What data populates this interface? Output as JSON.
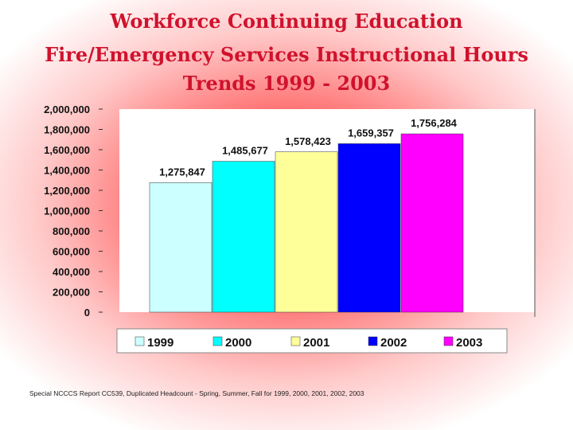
{
  "chart_data": {
    "type": "bar",
    "title": [
      "Workforce Continuing Education",
      "Fire/Emergency Services Instructional Hours",
      "Trends  1999 - 2003"
    ],
    "categories": [
      "1999",
      "2000",
      "2001",
      "2002",
      "2003"
    ],
    "values": [
      1275847,
      1485677,
      1578423,
      1659357,
      1756284
    ],
    "data_labels": [
      "1,275,847",
      "1,485,677",
      "1,578,423",
      "1,659,357",
      "1,756,284"
    ],
    "ylim": [
      0,
      2000000
    ],
    "y_ticks": [
      0,
      200000,
      400000,
      600000,
      800000,
      1000000,
      1200000,
      1400000,
      1600000,
      1800000,
      2000000
    ],
    "y_tick_labels": [
      "0",
      "200,000",
      "400,000",
      "600,000",
      "800,000",
      "1,000,000",
      "1,200,000",
      "1,400,000",
      "1,600,000",
      "1,800,000",
      "2,000,000"
    ],
    "legend": [
      "1999",
      "2000",
      "2001",
      "2002",
      "2003"
    ],
    "legend_position": "bottom",
    "colors": [
      "#ccffff",
      "#00ffff",
      "#ffff99",
      "#0000ff",
      "#ff00ff"
    ],
    "plot_background": "#ffffff",
    "grid": false
  },
  "footnote": "Special NCCCS Report CC539, Duplicated Headcount - Spring, Summer, Fall for 1999, 2000, 2001, 2002, 2003"
}
